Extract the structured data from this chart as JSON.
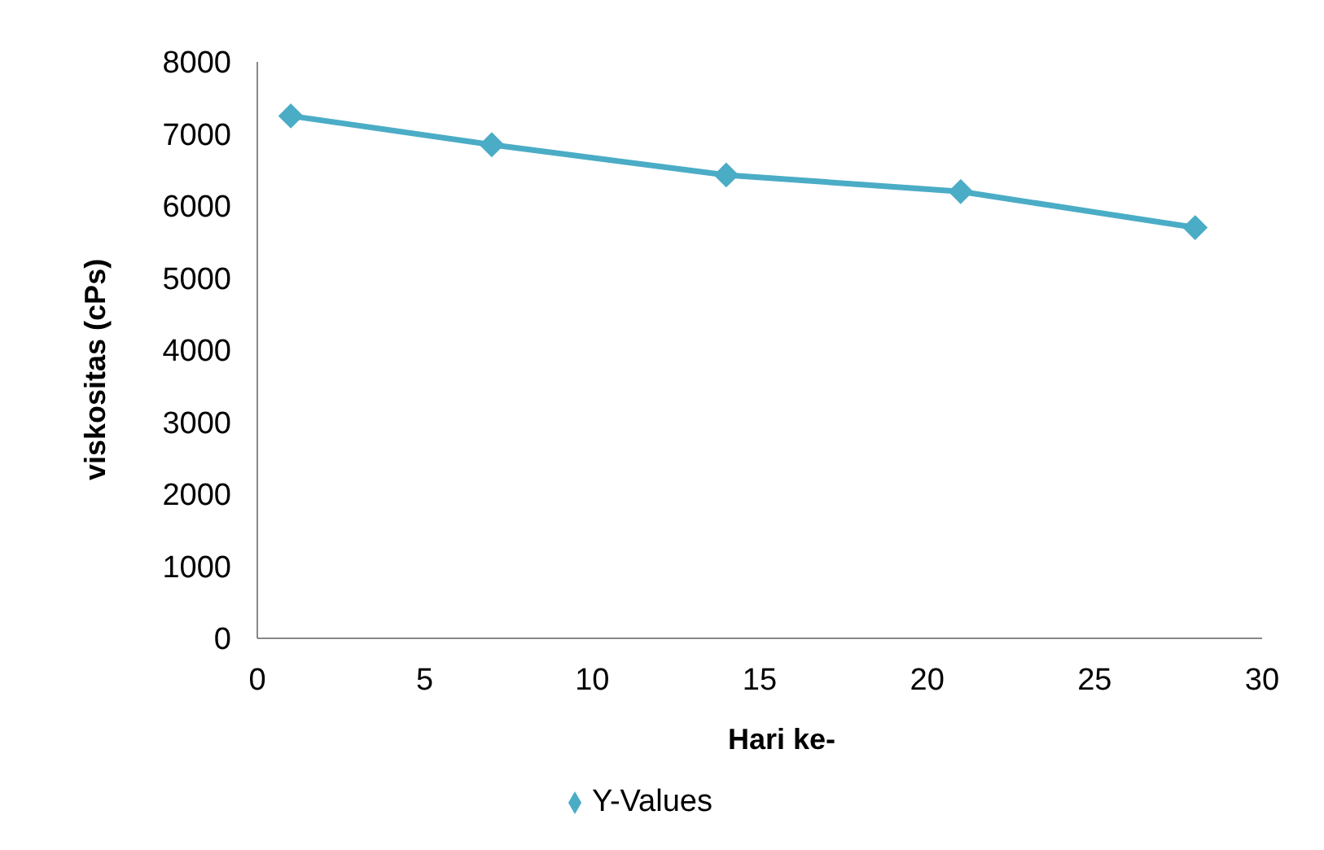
{
  "chart_data": {
    "type": "line",
    "xlabel": "Hari ke-",
    "ylabel": "viskositas (cPs)",
    "x": [
      1,
      7,
      14,
      21,
      28
    ],
    "series": [
      {
        "name": "Y-Values",
        "color": "#4bacc6",
        "values": [
          7250,
          6850,
          6430,
          6200,
          5700
        ]
      }
    ],
    "xlim": [
      0,
      30
    ],
    "xticks": [
      0,
      5,
      10,
      15,
      20,
      25,
      30
    ],
    "ylim": [
      0,
      8000
    ],
    "yticks": [
      0,
      1000,
      2000,
      3000,
      4000,
      5000,
      6000,
      7000,
      8000
    ],
    "grid": false,
    "legend": "bottom",
    "marker": "diamond",
    "line_style": "solid"
  }
}
